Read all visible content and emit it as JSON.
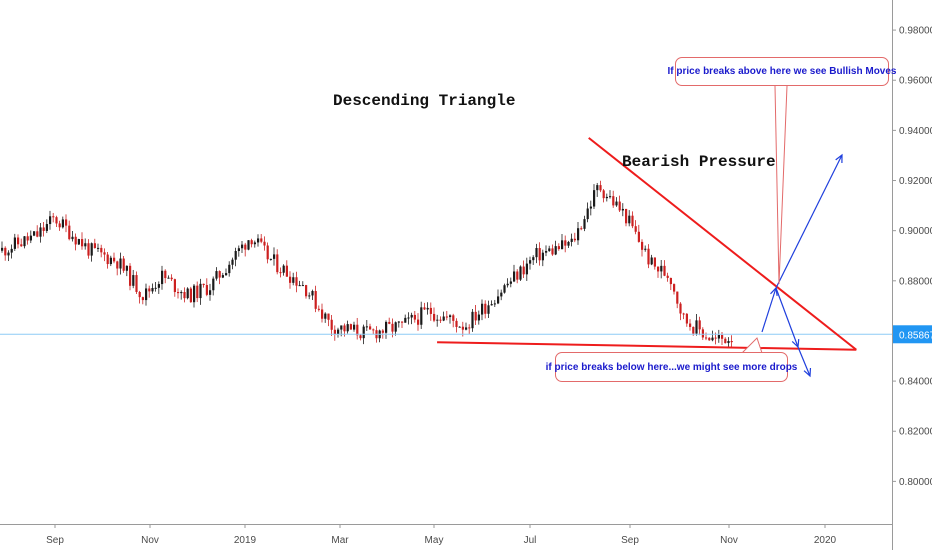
{
  "chart_data": {
    "type": "candlestick",
    "title": "Descending Triangle",
    "x_labels": [
      "Sep",
      "Nov",
      "2019",
      "Mar",
      "May",
      "Jul",
      "Sep",
      "Nov",
      "2020"
    ],
    "y_ticks": [
      "0.98000",
      "0.96000",
      "0.94000",
      "0.92000",
      "0.90000",
      "0.88000",
      "0.84000",
      "0.82000",
      "0.80000"
    ],
    "y_tick_values": [
      0.98,
      0.96,
      0.94,
      0.92,
      0.9,
      0.88,
      0.84,
      0.82,
      0.8
    ],
    "ylim": [
      0.783,
      0.992
    ],
    "current_price": {
      "label": "0.85867",
      "value": 0.85867
    },
    "close_series": [
      {
        "x": 0,
        "y": 0.892
      },
      {
        "x": 0.04,
        "y": 0.898
      },
      {
        "x": 0.06,
        "y": 0.905
      },
      {
        "x": 0.1,
        "y": 0.892
      },
      {
        "x": 0.13,
        "y": 0.888
      },
      {
        "x": 0.16,
        "y": 0.874
      },
      {
        "x": 0.18,
        "y": 0.882
      },
      {
        "x": 0.21,
        "y": 0.874
      },
      {
        "x": 0.235,
        "y": 0.878
      },
      {
        "x": 0.28,
        "y": 0.898
      },
      {
        "x": 0.3,
        "y": 0.889
      },
      {
        "x": 0.34,
        "y": 0.878
      },
      {
        "x": 0.37,
        "y": 0.862
      },
      {
        "x": 0.41,
        "y": 0.859
      },
      {
        "x": 0.45,
        "y": 0.862
      },
      {
        "x": 0.48,
        "y": 0.868
      },
      {
        "x": 0.52,
        "y": 0.862
      },
      {
        "x": 0.56,
        "y": 0.876
      },
      {
        "x": 0.6,
        "y": 0.89
      },
      {
        "x": 0.64,
        "y": 0.895
      },
      {
        "x": 0.67,
        "y": 0.918
      },
      {
        "x": 0.7,
        "y": 0.906
      },
      {
        "x": 0.73,
        "y": 0.886
      },
      {
        "x": 0.75,
        "y": 0.882
      },
      {
        "x": 0.765,
        "y": 0.865
      },
      {
        "x": 0.8,
        "y": 0.856
      },
      {
        "x": 0.82,
        "y": 0.858
      }
    ],
    "annotations": [
      {
        "text": "Descending Triangle"
      },
      {
        "text": "Bearish Pressure"
      },
      {
        "text": "If price breaks above here we see Bullish Moves"
      },
      {
        "text": "if price breaks below here...we might see more drops"
      }
    ],
    "trendlines": {
      "resistance": [
        {
          "t": 0.66,
          "y": 0.937
        },
        {
          "t": 0.96,
          "y": 0.8525
        }
      ],
      "support": [
        {
          "t": 0.49,
          "y": 0.8555
        },
        {
          "t": 0.96,
          "y": 0.8525
        }
      ]
    },
    "colors": {
      "up_candle": "#1a1a1a",
      "down_candle": "#cc2020",
      "trendline": "#ee1c1c",
      "arrow": "#1f3fdd",
      "price_line": "#8ecbf5",
      "price_badge": "#2196f3",
      "bubble_text": "#1a1acc",
      "bubble_border": "#e36a6a"
    },
    "grid": false
  }
}
